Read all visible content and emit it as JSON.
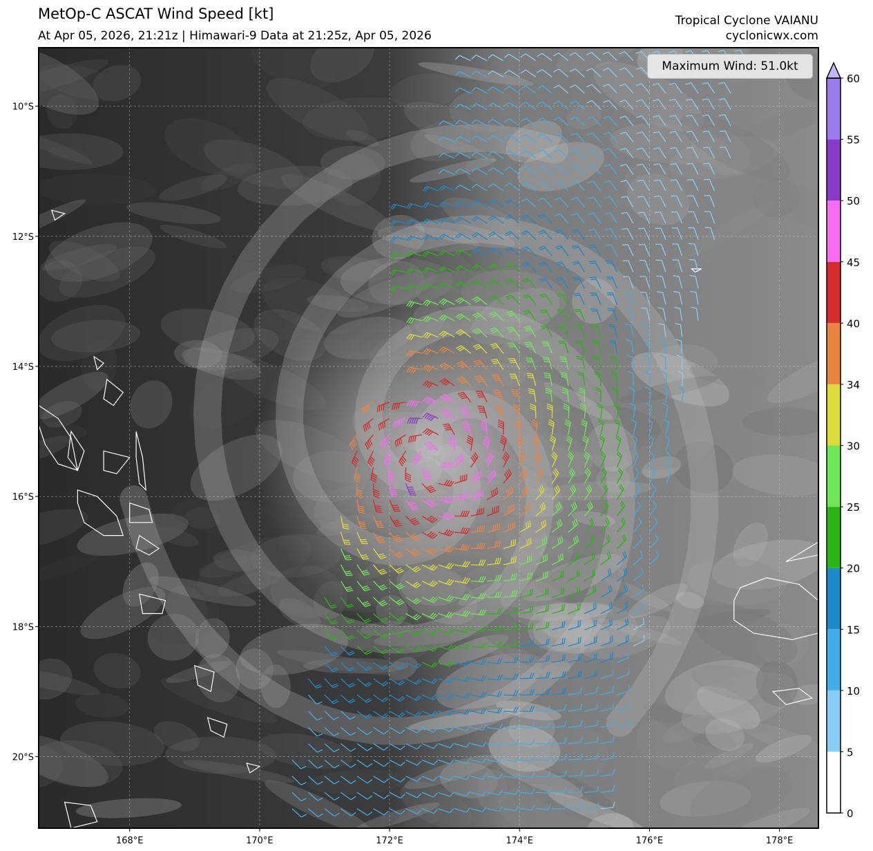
{
  "header": {
    "title": "MetOp-C ASCAT Wind Speed [kt]",
    "subtitle": "At Apr 05, 2026, 21:21z | Himawari-9 Data at 21:25z, Apr 05, 2026",
    "storm_name": "Tropical Cyclone VAIANU",
    "site": "cyclonicwx.com"
  },
  "max_wind_label": "Maximum Wind: 51.0kt",
  "map": {
    "lon_range": [
      166.6,
      178.6
    ],
    "lat_range": [
      -21.1,
      -9.1
    ],
    "lon_ticks": [
      {
        "value": 168,
        "label": "168°E"
      },
      {
        "value": 170,
        "label": "170°E"
      },
      {
        "value": 172,
        "label": "172°E"
      },
      {
        "value": 174,
        "label": "174°E"
      },
      {
        "value": 176,
        "label": "176°E"
      },
      {
        "value": 178,
        "label": "178°E"
      }
    ],
    "lat_ticks": [
      {
        "value": -10,
        "label": "10°S"
      },
      {
        "value": -12,
        "label": "12°S"
      },
      {
        "value": -14,
        "label": "14°S"
      },
      {
        "value": -16,
        "label": "16°S"
      },
      {
        "value": -18,
        "label": "18°S"
      },
      {
        "value": -20,
        "label": "20°S"
      }
    ],
    "storm_center": {
      "lon": 172.7,
      "lat": -15.4
    },
    "grid": true
  },
  "colorbar": {
    "ticks": [
      "0",
      "5",
      "10",
      "15",
      "20",
      "25",
      "30",
      "34",
      "40",
      "45",
      "50",
      "55",
      "60"
    ],
    "colors": [
      "#ffffff",
      "#87cdf6",
      "#42ade9",
      "#1d8acb",
      "#2ab515",
      "#6fe657",
      "#dbdb3b",
      "#ea8442",
      "#d62b2b",
      "#f76cf2",
      "#8a3ac9",
      "#9b7ced"
    ],
    "extend_color": "#c4b8f5"
  },
  "colors": {
    "lt5": "#ffffff",
    "lt10": "#87cdf6",
    "lt15": "#42ade9",
    "lt20": "#1d8acb",
    "lt25": "#2ab515",
    "lt30": "#6fe657",
    "lt34": "#dbdb3b",
    "lt40": "#ea8442",
    "lt45": "#d62b2b",
    "lt50": "#f76cf2",
    "lt55": "#8a3ac9",
    "lt60": "#9b7ced"
  }
}
